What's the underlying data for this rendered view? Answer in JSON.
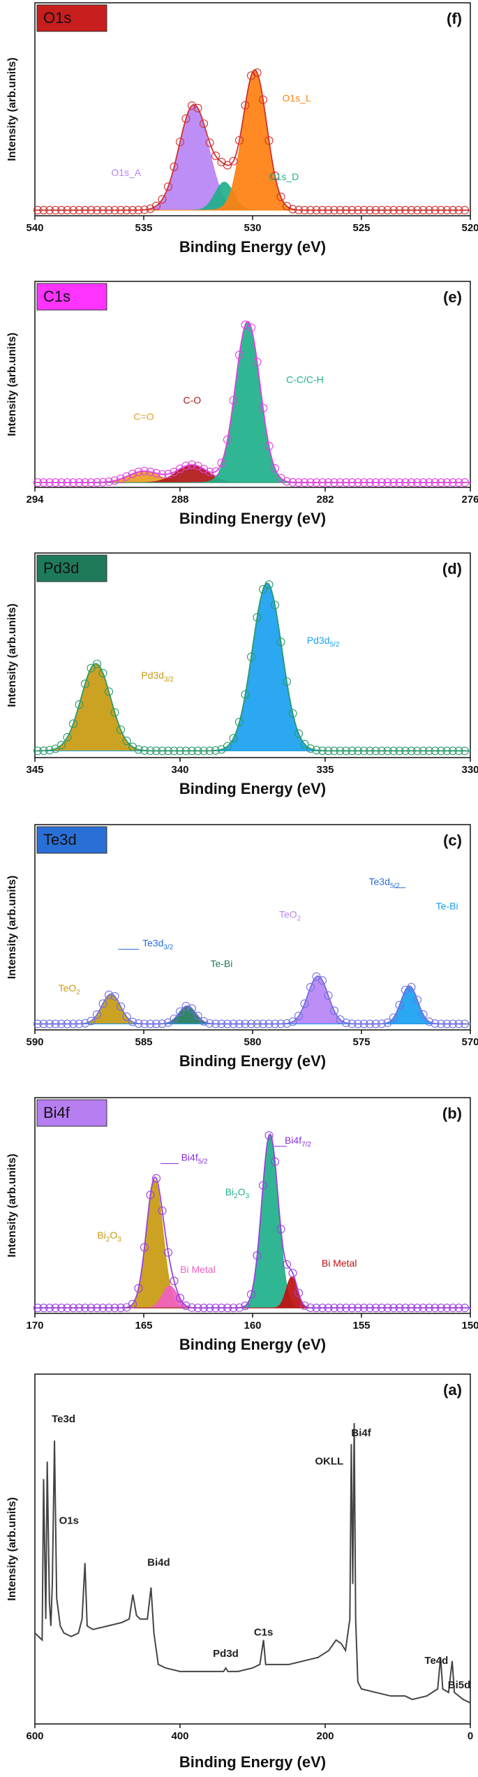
{
  "chart_data": [
    {
      "type": "xps-fit",
      "tag": "O1s",
      "tag_color": "#c81e1e",
      "letter": "(f)",
      "ylabel": "Intensity (arb.units)",
      "xlabel": "Binding Energy  (eV)",
      "xlim": [
        540,
        520
      ],
      "xticks": [
        540,
        535,
        530,
        525,
        520
      ],
      "ylim": [
        -5,
        185
      ],
      "data_color": "#d03030",
      "peaks": [
        {
          "label": [
            {
              "text": "O1s_A"
            }
          ],
          "center": 532.7,
          "height": 94,
          "fwhm": 1.6,
          "color": "#b784f5"
        },
        {
          "label": [
            {
              "text": "O1s_D"
            }
          ],
          "center": 531.3,
          "height": 25,
          "fwhm": 1.0,
          "color": "#20b08a"
        },
        {
          "label": [
            {
              "text": "O1s_L"
            }
          ],
          "center": 529.9,
          "height": 125,
          "fwhm": 1.3,
          "color": "#ff8010"
        }
      ],
      "annotations": []
    },
    {
      "type": "xps-fit",
      "tag": "C1s",
      "tag_color": "#ff33ff",
      "letter": "(e)",
      "ylabel": "Intensity (arb.units)",
      "xlabel": "Binding Energy  (eV)",
      "xlim": [
        294,
        276
      ],
      "xticks": [
        294,
        288,
        282,
        276
      ],
      "ylim": [
        -3,
        125
      ],
      "data_color": "#e040e0",
      "peaks": [
        {
          "label": [
            {
              "text": "C=O"
            }
          ],
          "center": 289.5,
          "height": 7,
          "fwhm": 1.5,
          "color": "#e8a020"
        },
        {
          "label": [
            {
              "text": "C-O"
            }
          ],
          "center": 287.5,
          "height": 11,
          "fwhm": 1.5,
          "color": "#b01818"
        },
        {
          "label": [
            {
              "text": "C-C/C-H"
            }
          ],
          "center": 285.2,
          "height": 100,
          "fwhm": 1.2,
          "color": "#20b08a"
        }
      ],
      "annotations": []
    },
    {
      "type": "xps-fit",
      "tag": "Pd3d",
      "tag_color": "#1f7a5a",
      "letter": "(d)",
      "ylabel": "Intensity (arb.units)",
      "xlabel": "Binding Energy  (eV)",
      "xlim": [
        345,
        330
      ],
      "xticks": [
        345,
        340,
        335,
        330
      ],
      "ylim": [
        -4,
        118
      ],
      "data_color": "#2a9a6a",
      "peaks": [
        {
          "label": [
            {
              "text": "Pd3d"
            },
            {
              "sub": "3/2"
            }
          ],
          "center": 342.9,
          "height": 52,
          "fwhm": 1.2,
          "color": "#c89a10"
        },
        {
          "label": [
            {
              "text": "Pd3d"
            },
            {
              "sub": "5/2"
            }
          ],
          "center": 337.0,
          "height": 100,
          "fwhm": 1.2,
          "color": "#1aa0f0"
        }
      ],
      "annotations": []
    },
    {
      "type": "xps-fit",
      "tag": "Te3d",
      "tag_color": "#2a6fd6",
      "letter": "(c)",
      "ylabel": "Intensity (arb.units)",
      "xlabel": "Binding Energy  (eV)",
      "xlim": [
        590,
        570
      ],
      "xticks": [
        590,
        585,
        580,
        575,
        570
      ],
      "ylim": [
        -3,
        100
      ],
      "data_color": "#7070e0",
      "peaks": [
        {
          "label": [
            {
              "text": "TeO"
            },
            {
              "sub": "2"
            }
          ],
          "center": 586.5,
          "height": 15,
          "fwhm": 1.0,
          "color": "#c89a10"
        },
        {
          "label": [
            {
              "text": "Te-Bi"
            }
          ],
          "center": 583.0,
          "height": 9,
          "fwhm": 0.9,
          "color": "#1f7a5a"
        },
        {
          "label": [
            {
              "text": "TeO"
            },
            {
              "sub": "2"
            }
          ],
          "center": 577.0,
          "height": 24,
          "fwhm": 1.1,
          "color": "#b784f5"
        },
        {
          "label": [
            {
              "text": "Te-Bi"
            }
          ],
          "center": 572.8,
          "height": 19,
          "fwhm": 0.9,
          "color": "#1aa0f0"
        }
      ],
      "annotations": [
        {
          "label": [
            {
              "text": "Te3d"
            },
            {
              "sub": "3/2"
            }
          ],
          "x": 586.5,
          "color": "#2a6fd6"
        },
        {
          "label": [
            {
              "text": "Te3d"
            },
            {
              "sub": "5/2"
            }
          ],
          "x": 572.8,
          "color": "#2a6fd6"
        }
      ]
    },
    {
      "type": "xps-fit",
      "tag": "Bi4f",
      "tag_color": "#b67ef0",
      "letter": "(b)",
      "ylabel": "Intensity (arb.units)",
      "xlabel": "Binding Energy  (eV)",
      "xlim": [
        170,
        150
      ],
      "xticks": [
        170,
        165,
        160,
        155,
        150
      ],
      "ylim": [
        -3,
        115
      ],
      "data_color": "#9a40e0",
      "peaks": [
        {
          "label": [
            {
              "text": "Bi"
            },
            {
              "sub": "2"
            },
            {
              "text": "O"
            },
            {
              "sub": "3"
            }
          ],
          "center": 164.5,
          "height": 70,
          "fwhm": 0.9,
          "color": "#c89a10"
        },
        {
          "label": [
            {
              "text": "Bi Metal"
            }
          ],
          "center": 163.8,
          "height": 12,
          "fwhm": 0.8,
          "color": "#f060c0"
        },
        {
          "label": [
            {
              "text": "Bi"
            },
            {
              "sub": "2"
            },
            {
              "text": "O"
            },
            {
              "sub": "3"
            }
          ],
          "center": 159.2,
          "height": 95,
          "fwhm": 0.9,
          "color": "#20b08a"
        },
        {
          "label": [
            {
              "text": "Bi Metal"
            }
          ],
          "center": 158.2,
          "height": 17,
          "fwhm": 0.6,
          "color": "#c01010"
        }
      ],
      "annotations": [
        {
          "label": [
            {
              "text": "Bi4f"
            },
            {
              "sub": "5/2"
            }
          ],
          "x": 164.5,
          "color": "#8a30e0"
        },
        {
          "label": [
            {
              "text": "Bi4f"
            },
            {
              "sub": "7/2"
            }
          ],
          "x": 159.2,
          "color": "#8a30e0"
        }
      ]
    },
    {
      "type": "line",
      "letter": "(a)",
      "ylabel": "Intensity (arb.units)",
      "xlabel": "Binding Energy (eV)",
      "xlim": [
        600,
        0
      ],
      "xticks": [
        600,
        400,
        200,
        0
      ],
      "ylim": [
        0,
        100
      ],
      "color": "#444444",
      "x": [
        600,
        595,
        590,
        588,
        585,
        583,
        580,
        578,
        576,
        573,
        570,
        565,
        560,
        550,
        540,
        535,
        531,
        528,
        520,
        500,
        480,
        470,
        465,
        460,
        455,
        445,
        440,
        436,
        430,
        420,
        400,
        380,
        360,
        340,
        337,
        334,
        320,
        300,
        290,
        285,
        282,
        270,
        250,
        230,
        210,
        195,
        185,
        178,
        172,
        166,
        164,
        162,
        160,
        158,
        155,
        150,
        130,
        110,
        90,
        80,
        60,
        45,
        41,
        38,
        30,
        25,
        22,
        10,
        0
      ],
      "values": [
        26,
        25,
        24,
        70,
        30,
        75,
        35,
        28,
        40,
        81,
        36,
        28,
        26,
        25,
        26,
        30,
        46,
        28,
        27,
        28,
        29,
        30,
        37,
        31,
        30,
        30,
        39,
        26,
        17,
        16,
        15,
        15,
        15,
        15,
        16,
        15,
        15,
        16,
        17,
        24,
        17,
        17,
        17,
        18,
        19,
        21,
        24,
        23,
        21,
        30,
        80,
        40,
        86,
        30,
        12,
        10,
        9,
        8,
        8,
        7,
        8,
        10,
        19,
        10,
        9,
        18,
        9,
        7,
        6
      ],
      "annotations": [
        {
          "label": [
            {
              "text": "Te3d"
            }
          ],
          "x": 573
        },
        {
          "label": [
            {
              "text": "O1s"
            }
          ],
          "x": 531
        },
        {
          "label": [
            {
              "text": "Bi4d"
            }
          ],
          "x": 440
        },
        {
          "label": [
            {
              "text": "Pd3d"
            }
          ],
          "x": 337
        },
        {
          "label": [
            {
              "text": "C1s"
            }
          ],
          "x": 285
        },
        {
          "label": [
            {
              "text": "OKLL"
            }
          ],
          "x": 180
        },
        {
          "label": [
            {
              "text": "Bi4f"
            }
          ],
          "x": 160
        },
        {
          "label": [
            {
              "text": "Te4d"
            }
          ],
          "x": 41
        },
        {
          "label": [
            {
              "text": "Bi5d"
            }
          ],
          "x": 25
        }
      ]
    }
  ]
}
